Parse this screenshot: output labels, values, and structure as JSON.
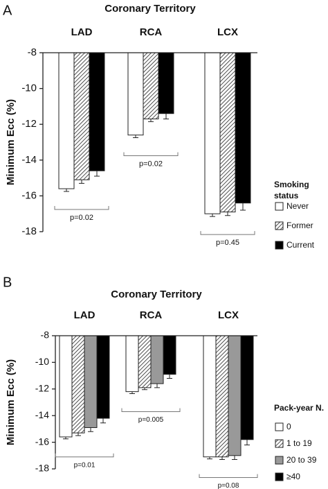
{
  "chart_data": [
    {
      "type": "bar",
      "panel_label": "A",
      "title": "Coronary Territory",
      "y_label": "Minimum Ecc (%)",
      "categories": [
        "LAD",
        "RCA",
        "LCX"
      ],
      "ylim": [
        -18,
        -8
      ],
      "yticks": [
        -18,
        -16,
        -14,
        -12,
        -10,
        -8
      ],
      "legend_title": "Smoking status",
      "series": [
        {
          "name": "Never",
          "color": "#ffffff",
          "values": [
            -15.6,
            -12.6,
            -17.0
          ],
          "errors": [
            0.15,
            0.15,
            0.15
          ]
        },
        {
          "name": "Former",
          "color": "#ffffff",
          "pattern": "hatch",
          "values": [
            -15.1,
            -11.7,
            -16.9
          ],
          "errors": [
            0.2,
            0.15,
            0.2
          ]
        },
        {
          "name": "Current",
          "color": "#000000",
          "values": [
            -14.6,
            -11.4,
            -16.4
          ],
          "errors": [
            0.3,
            0.3,
            0.4
          ]
        }
      ],
      "annotations": [
        {
          "text": "p=0.02",
          "category": 0
        },
        {
          "text": "p=0.02",
          "category": 1
        },
        {
          "text": "p=0.45",
          "category": 2
        }
      ]
    },
    {
      "type": "bar",
      "panel_label": "B",
      "title": "Coronary Territory",
      "y_label": "Minimum Ecc (%)",
      "categories": [
        "LAD",
        "RCA",
        "LCX"
      ],
      "ylim": [
        -18,
        -8
      ],
      "yticks": [
        -18,
        -16,
        -14,
        -12,
        -10,
        -8
      ],
      "legend_title": "Pack-year N.",
      "series": [
        {
          "name": "0",
          "color": "#ffffff",
          "values": [
            -15.6,
            -12.2,
            -17.1
          ],
          "errors": [
            0.15,
            0.15,
            0.15
          ]
        },
        {
          "name": "1 to 19",
          "color": "#ffffff",
          "pattern": "hatch",
          "values": [
            -15.3,
            -11.9,
            -17.1
          ],
          "errors": [
            0.2,
            0.15,
            0.2
          ]
        },
        {
          "name": "20 to 39",
          "color": "#999999",
          "values": [
            -14.9,
            -11.6,
            -17.0
          ],
          "errors": [
            0.3,
            0.3,
            0.3
          ]
        },
        {
          "name": "≥40",
          "color": "#000000",
          "values": [
            -14.2,
            -10.9,
            -15.8
          ],
          "errors": [
            0.35,
            0.3,
            0.4
          ]
        }
      ],
      "annotations": [
        {
          "text": "p=0.01",
          "category": 0
        },
        {
          "text": "p=0.005",
          "category": 1
        },
        {
          "text": "p=0.08",
          "category": 2
        }
      ]
    }
  ]
}
